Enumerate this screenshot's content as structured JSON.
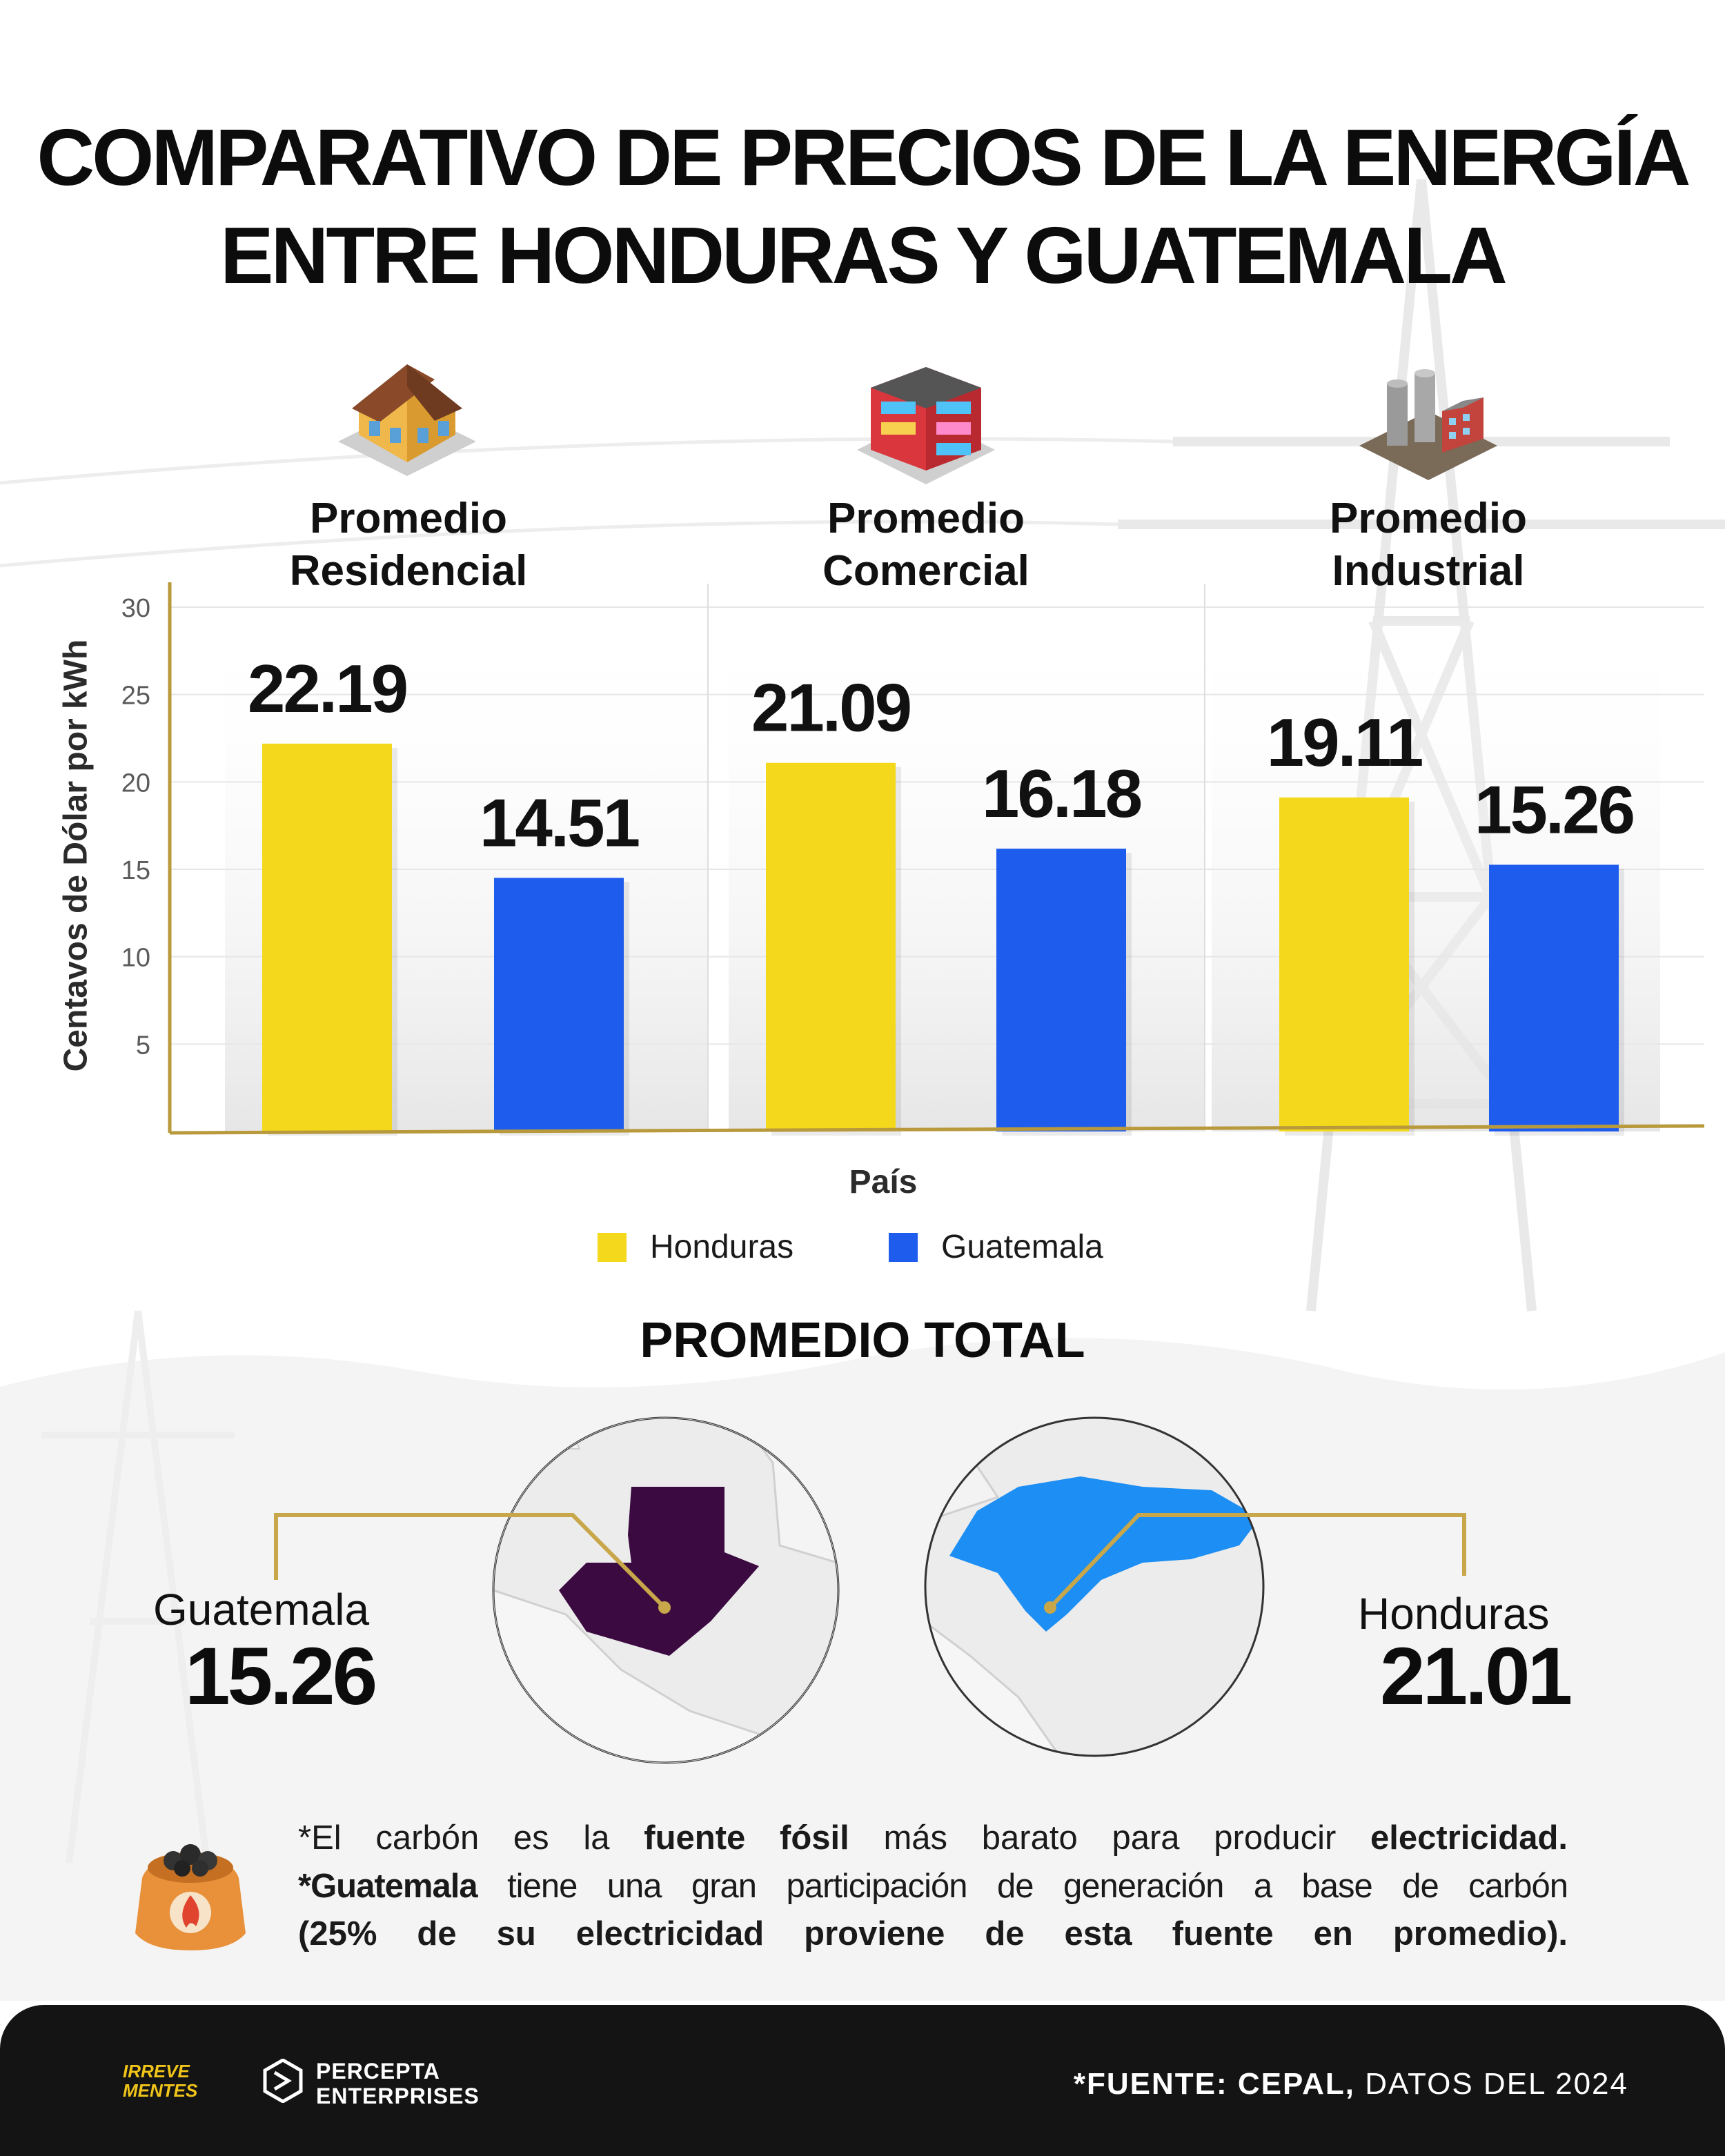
{
  "title": {
    "line1": "COMPARATIVO DE PRECIOS DE LA ENERGÍA",
    "line2": "ENTRE HONDURAS Y GUATEMALA"
  },
  "colors": {
    "honduras": "#f3d81c",
    "guatemala": "#1e5ced",
    "axis": "#b89a3c",
    "gold_line": "#c8a74a",
    "guatemala_map": "#3b0a41",
    "honduras_map": "#1d8ef3",
    "footer": "#141414"
  },
  "chart_data": {
    "type": "bar",
    "categories": [
      "Promedio Residencial",
      "Promedio Comercial",
      "Promedio Industrial"
    ],
    "category_lines": [
      [
        "Promedio",
        "Residencial"
      ],
      [
        "Promedio",
        "Comercial"
      ],
      [
        "Promedio",
        "Industrial"
      ]
    ],
    "category_icons": [
      "house-icon",
      "commercial-building-icon",
      "factory-icon"
    ],
    "series": [
      {
        "name": "Honduras",
        "values": [
          22.19,
          21.09,
          19.11
        ],
        "labels": [
          "22.19",
          "21.09",
          "19.11"
        ]
      },
      {
        "name": "Guatemala",
        "values": [
          14.51,
          16.18,
          15.26
        ],
        "labels": [
          "14.51",
          "16.18",
          "15.26"
        ]
      }
    ],
    "xlabel": "País",
    "ylabel": "Centavos de Dólar por kWh",
    "ylim": [
      0,
      30
    ],
    "yticks": [
      5,
      10,
      15,
      20,
      25,
      30
    ],
    "ytick_labels": [
      "5",
      "10",
      "15",
      "20",
      "25",
      "30"
    ],
    "grid": true,
    "legend": "bottom-center"
  },
  "legend": {
    "honduras": "Honduras",
    "guatemala": "Guatemala"
  },
  "total": {
    "title": "PROMEDIO TOTAL",
    "guatemala": {
      "name": "Guatemala",
      "value": "15.26"
    },
    "honduras": {
      "name": "Honduras",
      "value": "21.01"
    }
  },
  "note": {
    "line1": {
      "a": "*El carbón es la ",
      "b": "fuente fósil",
      "c": " más barato para producir ",
      "d": "electricidad."
    },
    "line2": {
      "a": "*Guatemala",
      "b": " tiene una gran participación de generación a base de carbón"
    },
    "line3": "(25% de su electricidad proviene de esta fuente en promedio)."
  },
  "footer": {
    "brand1_line1": "IRREVE",
    "brand1_line2": "MENTES",
    "brand2_line1": "PERCEPTA",
    "brand2_line2": "ENTERPRISES",
    "source_bold": "*FUENTE: CEPAL,",
    "source_rest": " DATOS DEL 2024"
  }
}
